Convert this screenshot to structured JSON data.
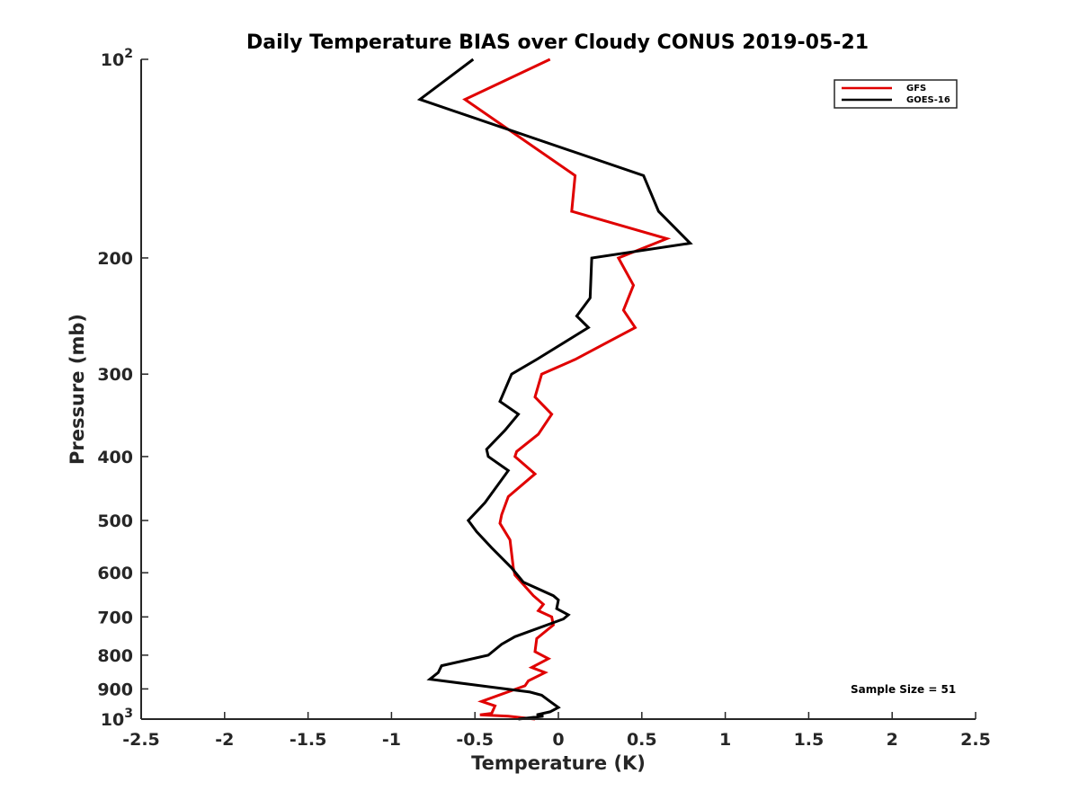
{
  "chart_data": {
    "type": "line",
    "title": "Daily Temperature BIAS over Cloudy CONUS 2019-05-21",
    "xlabel": "Temperature (K)",
    "ylabel": "Pressure (mb)",
    "xlim": [
      -2.5,
      2.5
    ],
    "ylim": [
      1000,
      100
    ],
    "yscale": "log",
    "y_reversed": true,
    "grid": false,
    "legend_position": "top-right",
    "x_ticks": [
      "-2.5",
      "-2",
      "-1.5",
      "-1",
      "-0.5",
      "0",
      "0.5",
      "1",
      "1.5",
      "2",
      "2.5"
    ],
    "x_tick_values": [
      -2.5,
      -2,
      -1.5,
      -1,
      -0.5,
      0,
      0.5,
      1,
      1.5,
      2,
      2.5
    ],
    "y_ticks": [
      {
        "value": 100,
        "base": "10",
        "exp": "2"
      },
      {
        "value": 200,
        "label": "200"
      },
      {
        "value": 300,
        "label": "300"
      },
      {
        "value": 400,
        "label": "400"
      },
      {
        "value": 500,
        "label": "500"
      },
      {
        "value": 600,
        "label": "600"
      },
      {
        "value": 700,
        "label": "700"
      },
      {
        "value": 800,
        "label": "800"
      },
      {
        "value": 900,
        "label": "900"
      },
      {
        "value": 1000,
        "base": "10",
        "exp": "3"
      }
    ],
    "annotation": "Sample Size = 51",
    "series": [
      {
        "name": "GFS",
        "color": "#e00000",
        "points": [
          [
            -0.05,
            100
          ],
          [
            -0.56,
            115
          ],
          [
            0.1,
            150
          ],
          [
            0.08,
            170
          ],
          [
            0.65,
            187
          ],
          [
            0.36,
            200
          ],
          [
            0.45,
            220
          ],
          [
            0.39,
            240
          ],
          [
            0.46,
            255
          ],
          [
            0.1,
            285
          ],
          [
            -0.1,
            300
          ],
          [
            -0.14,
            325
          ],
          [
            -0.04,
            345
          ],
          [
            -0.12,
            370
          ],
          [
            -0.25,
            393
          ],
          [
            -0.26,
            400
          ],
          [
            -0.14,
            425
          ],
          [
            -0.3,
            460
          ],
          [
            -0.34,
            490
          ],
          [
            -0.35,
            505
          ],
          [
            -0.29,
            535
          ],
          [
            -0.27,
            590
          ],
          [
            -0.26,
            605
          ],
          [
            -0.15,
            650
          ],
          [
            -0.09,
            670
          ],
          [
            -0.12,
            685
          ],
          [
            -0.04,
            700
          ],
          [
            -0.03,
            720
          ],
          [
            -0.13,
            755
          ],
          [
            -0.14,
            790
          ],
          [
            -0.06,
            810
          ],
          [
            -0.16,
            835
          ],
          [
            -0.08,
            850
          ],
          [
            -0.18,
            875
          ],
          [
            -0.2,
            890
          ],
          [
            -0.46,
            940
          ],
          [
            -0.38,
            955
          ],
          [
            -0.4,
            980
          ],
          [
            -0.47,
            985
          ],
          [
            -0.3,
            990
          ],
          [
            -0.14,
            1000
          ]
        ]
      },
      {
        "name": "GOES-16",
        "color": "#000000",
        "points": [
          [
            -0.51,
            100
          ],
          [
            -0.83,
            115
          ],
          [
            0.51,
            150
          ],
          [
            0.6,
            170
          ],
          [
            0.79,
            190
          ],
          [
            0.2,
            200
          ],
          [
            0.19,
            230
          ],
          [
            0.11,
            245
          ],
          [
            0.18,
            255
          ],
          [
            -0.13,
            285
          ],
          [
            -0.28,
            300
          ],
          [
            -0.35,
            330
          ],
          [
            -0.24,
            345
          ],
          [
            -0.32,
            365
          ],
          [
            -0.43,
            390
          ],
          [
            -0.42,
            400
          ],
          [
            -0.3,
            420
          ],
          [
            -0.44,
            470
          ],
          [
            -0.54,
            500
          ],
          [
            -0.49,
            520
          ],
          [
            -0.4,
            550
          ],
          [
            -0.28,
            590
          ],
          [
            -0.21,
            620
          ],
          [
            -0.03,
            650
          ],
          [
            0.0,
            660
          ],
          [
            -0.01,
            680
          ],
          [
            0.06,
            695
          ],
          [
            0.03,
            705
          ],
          [
            -0.26,
            750
          ],
          [
            -0.34,
            770
          ],
          [
            -0.42,
            800
          ],
          [
            -0.7,
            830
          ],
          [
            -0.72,
            850
          ],
          [
            -0.77,
            870
          ],
          [
            -0.17,
            910
          ],
          [
            -0.1,
            920
          ],
          [
            -0.05,
            940
          ],
          [
            0.0,
            960
          ],
          [
            -0.05,
            975
          ],
          [
            -0.13,
            985
          ],
          [
            -0.09,
            990
          ],
          [
            -0.24,
            1000
          ]
        ]
      }
    ]
  }
}
